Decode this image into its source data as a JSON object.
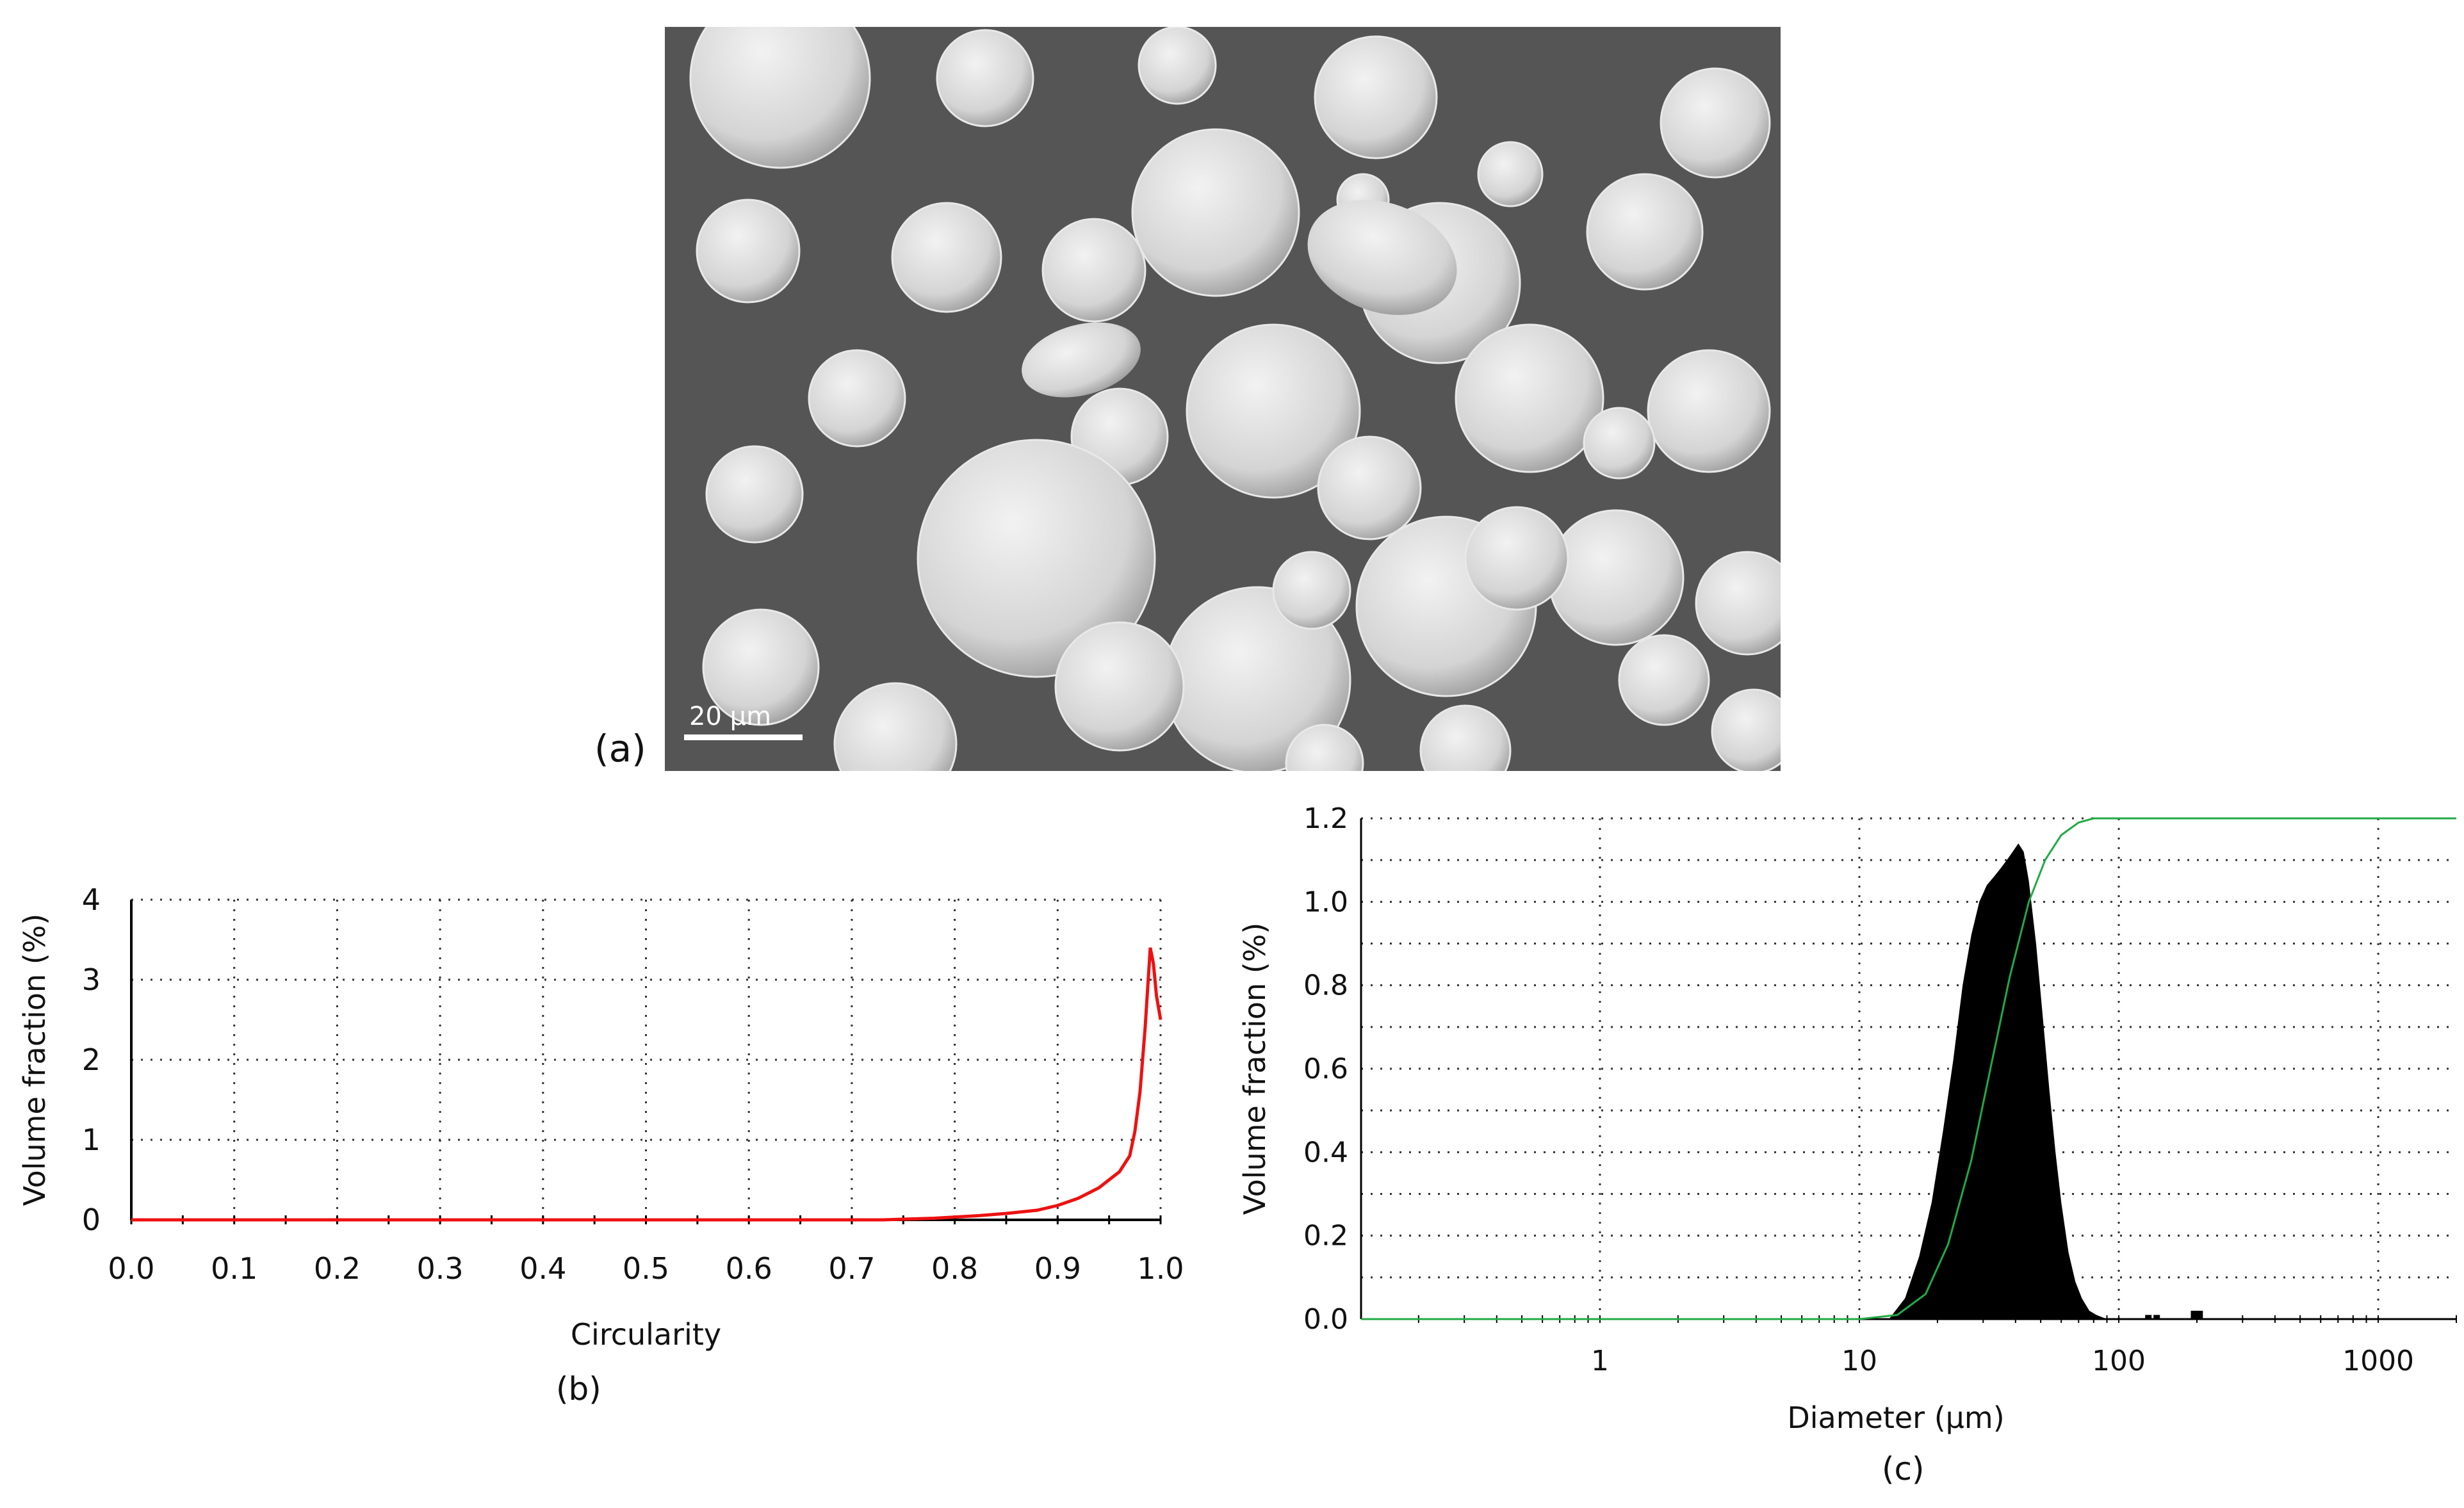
{
  "figure": {
    "panel_a": {
      "label": "(a)",
      "scale_bar_label": "20 µm"
    },
    "panel_b": {
      "label": "(b)"
    },
    "panel_c": {
      "label": "(c)"
    }
  },
  "colors": {
    "sem_background": "#555555",
    "particle_fill": "#dcdcdc",
    "circularity_line": "#ee1111",
    "cumulative_line": "#22aa44",
    "histogram_fill": "#000000"
  },
  "chart_data": [
    {
      "id": "circularity",
      "type": "line",
      "xlabel": "Circularity",
      "ylabel": "Volume fraction (%)",
      "xlim": [
        0.0,
        1.0
      ],
      "ylim": [
        0,
        4
      ],
      "xticks": [
        "0.0",
        "0.1",
        "0.2",
        "0.3",
        "0.4",
        "0.5",
        "0.6",
        "0.7",
        "0.8",
        "0.9",
        "1.0"
      ],
      "yticks": [
        "0",
        "1",
        "2",
        "3",
        "4"
      ],
      "grid": true,
      "series": [
        {
          "color": "#ee1111",
          "x": [
            0.0,
            0.73,
            0.78,
            0.82,
            0.85,
            0.88,
            0.9,
            0.92,
            0.94,
            0.95,
            0.96,
            0.97,
            0.975,
            0.98,
            0.985,
            0.99,
            0.993,
            0.996,
            1.0
          ],
          "y": [
            0.0,
            0.0,
            0.02,
            0.05,
            0.08,
            0.12,
            0.18,
            0.27,
            0.4,
            0.5,
            0.6,
            0.8,
            1.1,
            1.6,
            2.4,
            3.4,
            3.2,
            2.8,
            2.5
          ]
        }
      ]
    },
    {
      "id": "size",
      "type": "area",
      "xlabel": "Diameter (µm)",
      "ylabel": "Volume fraction (%)",
      "xscale": "log",
      "xlim": [
        0.12,
        2000
      ],
      "ylim": [
        0,
        1.2
      ],
      "xticks": [
        "1",
        "10",
        "100",
        "1000"
      ],
      "yticks": [
        "0.0",
        "0.2",
        "0.4",
        "0.6",
        "0.8",
        "1.0",
        "1.2"
      ],
      "grid": true,
      "series": [
        {
          "kind": "histogram",
          "color": "#000000",
          "x": [
            13,
            15,
            17,
            19,
            21,
            23,
            25,
            27,
            29,
            31,
            33,
            35,
            37,
            39,
            41,
            43,
            45,
            48,
            51,
            54,
            57,
            60,
            64,
            68,
            72,
            77,
            82,
            90
          ],
          "y": [
            0.0,
            0.05,
            0.15,
            0.28,
            0.45,
            0.62,
            0.8,
            0.92,
            1.0,
            1.04,
            1.06,
            1.08,
            1.1,
            1.12,
            1.14,
            1.12,
            1.05,
            0.9,
            0.72,
            0.55,
            0.4,
            0.28,
            0.16,
            0.09,
            0.05,
            0.02,
            0.01,
            0.0
          ]
        },
        {
          "kind": "cumulative",
          "color": "#22aa44",
          "x": [
            0.12,
            10,
            14,
            18,
            22,
            27,
            32,
            38,
            45,
            52,
            60,
            70,
            80,
            100,
            1000,
            2000
          ],
          "y": [
            0.0,
            0.0,
            0.01,
            0.06,
            0.18,
            0.38,
            0.6,
            0.82,
            1.0,
            1.1,
            1.16,
            1.19,
            1.2,
            1.2,
            1.2,
            1.2
          ]
        },
        {
          "kind": "outliers",
          "color": "#000000",
          "x": [
            130,
            140,
            195,
            205
          ],
          "y": [
            0.01,
            0.01,
            0.02,
            0.02
          ]
        }
      ]
    }
  ]
}
